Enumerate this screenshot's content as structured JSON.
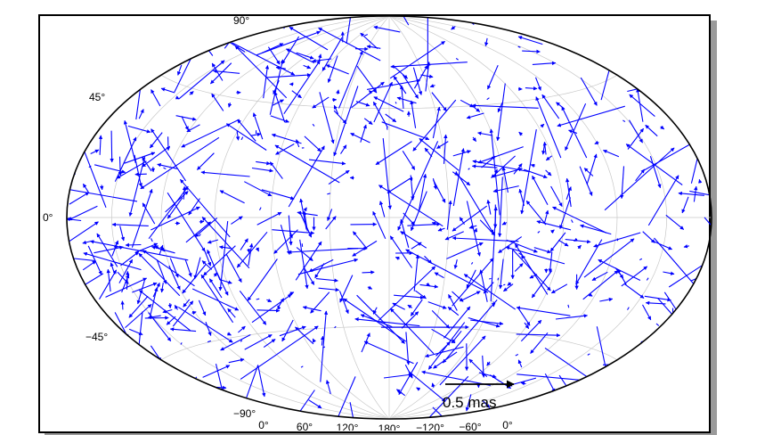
{
  "chart_data": {
    "type": "vector-field",
    "projection": "hammer-aitoff",
    "grid": true,
    "longitude_ticks": [
      "0°",
      "60°",
      "120°",
      "180°",
      "−120°",
      "−60°",
      "0°"
    ],
    "latitude_ticks": [
      "90°",
      "45°",
      "0°",
      "−45°",
      "−90°"
    ],
    "longitude_grid_step_deg": 30,
    "latitude_grid_step_deg": 45,
    "scale_bar": {
      "label": "0.5 mas",
      "value_mas": 0.5
    },
    "vector_color": "#0000ff",
    "vectors_note_seed": 20240611,
    "vector_count": 620,
    "vector_units": "mas"
  }
}
